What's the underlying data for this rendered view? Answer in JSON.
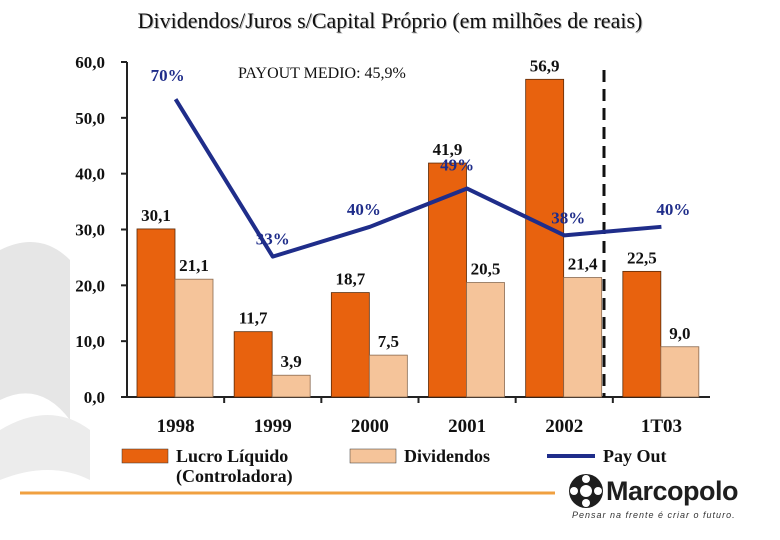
{
  "chart_data": {
    "type": "bar",
    "title": "Dividendos/Juros s/Capital Próprio (em milhões de reais)",
    "annotation": "PAYOUT MEDIO: 45,9%",
    "categories": [
      "1998",
      "1999",
      "2000",
      "2001",
      "2002",
      "1T03"
    ],
    "ylim": [
      0,
      60
    ],
    "yticks": [
      0,
      10,
      20,
      30,
      40,
      50,
      60
    ],
    "ytick_labels": [
      "0,0",
      "10,0",
      "20,0",
      "30,0",
      "40,0",
      "50,0",
      "60,0"
    ],
    "series": [
      {
        "name": "Lucro Líquido (Controladora)",
        "type": "bar",
        "color": "#e8620e",
        "values": [
          30.1,
          11.7,
          18.7,
          41.9,
          56.9,
          22.5
        ],
        "labels": [
          "30,1",
          "11,7",
          "18,7",
          "41,9",
          "56,9",
          "22,5"
        ]
      },
      {
        "name": "Dividendos",
        "type": "bar",
        "color": "#f5c49a",
        "values": [
          21.1,
          3.9,
          7.5,
          20.5,
          21.4,
          9.0
        ],
        "labels": [
          "21,1",
          "3,9",
          "7,5",
          "20,5",
          "21,4",
          "9,0"
        ]
      },
      {
        "name": "Pay Out",
        "type": "line",
        "color": "#1f2d8a",
        "values": [
          70,
          33,
          40,
          49,
          38,
          40
        ],
        "labels": [
          "70%",
          "33%",
          "40%",
          "49%",
          "38%",
          "40%"
        ]
      }
    ],
    "legend": {
      "profit_line1": "Lucro Líquido",
      "profit_line2": "(Controladora)",
      "dividends": "Dividendos",
      "payout": "Pay Out"
    }
  },
  "footer": {
    "brand": "Marcopolo",
    "slogan": "Pensar na frente é criar o futuro."
  }
}
